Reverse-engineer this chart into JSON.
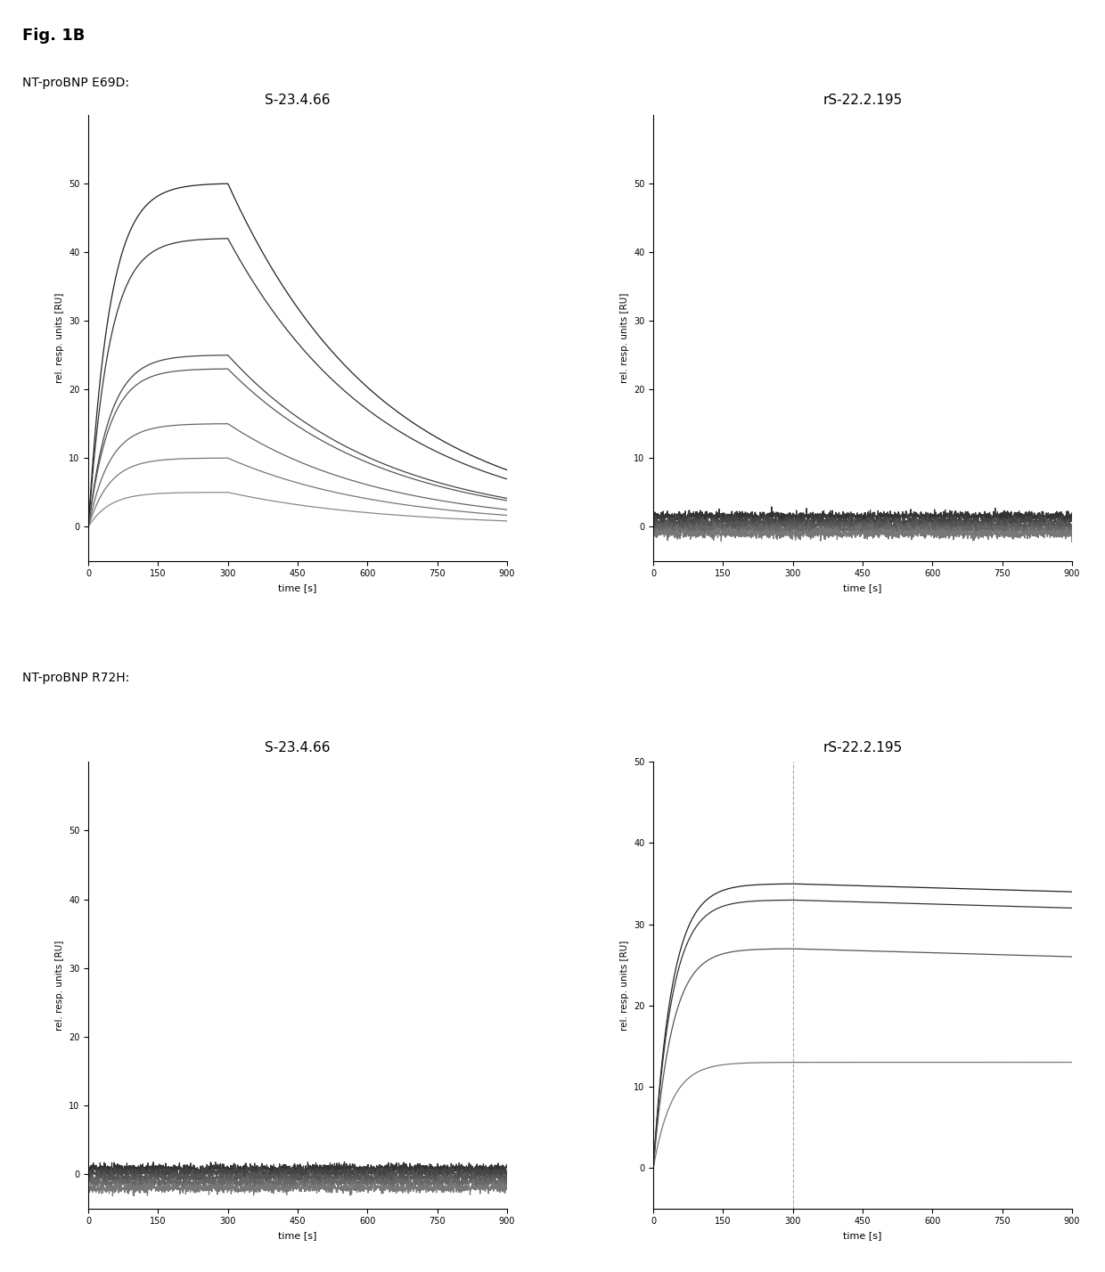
{
  "fig_label": "Fig. 1B",
  "section1_label": "NT-proBNP E69D:",
  "section2_label": "NT-proBNP R72H:",
  "xlabel": "time [s]",
  "ylabel": "rel. resp. units [RU]",
  "x_ticks": [
    0,
    150,
    300,
    450,
    600,
    750,
    900
  ],
  "x_max": 900,
  "association_end": 300,
  "background_color": "#ffffff",
  "panel_A1": {
    "title": "S-23.4.66",
    "ylim": [
      -5,
      60
    ],
    "yticks": [
      0,
      10,
      20,
      30,
      40,
      50
    ],
    "peaks": [
      50,
      42,
      25,
      23,
      15,
      10,
      5
    ],
    "colors": [
      "#222222",
      "#333333",
      "#444444",
      "#555555",
      "#666666",
      "#777777",
      "#888888"
    ],
    "ka": 0.022,
    "kd": 0.003
  },
  "panel_A2": {
    "title": "rS-22.2.195",
    "ylim": [
      -5,
      60
    ],
    "yticks": [
      0,
      10,
      20,
      30,
      40,
      50
    ],
    "levels": [
      1.5,
      0.8,
      0.2,
      -0.4,
      -1.0
    ],
    "colors": [
      "#333333",
      "#444444",
      "#555555",
      "#666666",
      "#777777"
    ],
    "seeds": [
      1,
      2,
      3,
      4,
      5
    ]
  },
  "panel_B1": {
    "title": "S-23.4.66",
    "ylim": [
      -5,
      60
    ],
    "yticks": [
      0,
      10,
      20,
      30,
      40,
      50
    ],
    "levels": [
      0.8,
      0.2,
      -0.5,
      -1.2,
      -2.0
    ],
    "colors": [
      "#333333",
      "#444444",
      "#555555",
      "#666666",
      "#777777"
    ],
    "seeds": [
      10,
      11,
      12,
      13,
      14
    ]
  },
  "panel_B2": {
    "title": "rS-22.2.195",
    "ylim": [
      -5,
      50
    ],
    "yticks": [
      0,
      10,
      20,
      30,
      40,
      50
    ],
    "plateaus": [
      35,
      33,
      27,
      13
    ],
    "ends": [
      34,
      32,
      26,
      13
    ],
    "colors": [
      "#222222",
      "#333333",
      "#555555",
      "#777777"
    ],
    "ka": 0.025,
    "vline": 300
  }
}
